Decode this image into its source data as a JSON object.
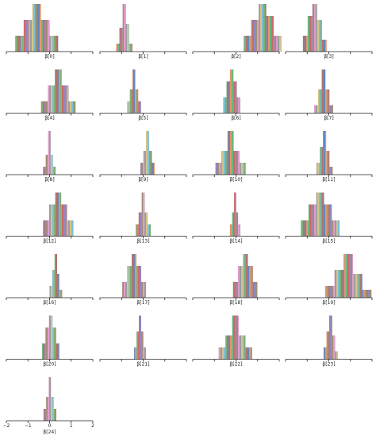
{
  "chart_data": [
    {
      "type": "histogram",
      "xlabel": "β[0]",
      "bins": [
        -1.6,
        -1.2,
        -0.8,
        -0.4,
        0,
        0.4
      ],
      "counts": [
        20,
        40,
        60,
        40,
        20
      ]
    },
    {
      "type": "histogram",
      "xlabel": "β[1]",
      "bins": [
        -1.25,
        -1.1,
        -0.95,
        -0.8,
        -0.65,
        -0.5
      ],
      "counts": [
        10,
        30,
        60,
        35,
        10
      ]
    },
    {
      "type": "histogram",
      "xlabel": "β[2]",
      "bins": [
        0.35,
        0.7,
        1.05,
        1.4,
        1.75,
        2.1
      ],
      "counts": [
        20,
        40,
        60,
        45,
        20
      ]
    },
    {
      "type": "histogram",
      "xlabel": "β[3]",
      "bins": [
        -1.2,
        -0.98,
        -0.76,
        -0.54,
        -0.32,
        -0.1
      ],
      "counts": [
        20,
        45,
        60,
        40,
        15
      ]
    },
    {
      "type": "histogram",
      "xlabel": "β[4]",
      "bins": [
        -0.4,
        -0.08,
        0.24,
        0.56,
        0.88,
        1.2
      ],
      "counts": [
        15,
        35,
        55,
        35,
        15
      ]
    },
    {
      "type": "histogram",
      "xlabel": "β[5]",
      "bins": [
        -0.75,
        -0.62,
        -0.49,
        -0.36,
        -0.23,
        -0.1
      ],
      "counts": [
        15,
        30,
        55,
        30,
        15
      ]
    },
    {
      "type": "histogram",
      "xlabel": "β[6]",
      "bins": [
        -0.6,
        -0.44,
        -0.28,
        -0.12,
        0.04,
        0.2
      ],
      "counts": [
        20,
        40,
        55,
        40,
        20
      ]
    },
    {
      "type": "histogram",
      "xlabel": "β[7]",
      "bins": [
        -0.68,
        -0.5,
        -0.33,
        -0.15,
        0.03,
        0.2
      ],
      "counts": [
        10,
        30,
        55,
        30,
        10
      ]
    },
    {
      "type": "histogram",
      "xlabel": "β[8]",
      "bins": [
        -0.3,
        -0.18,
        -0.07,
        0.05,
        0.16,
        0.28
      ],
      "counts": [
        10,
        25,
        55,
        25,
        10
      ]
    },
    {
      "type": "histogram",
      "xlabel": "β[9]",
      "bins": [
        -0.13,
        0,
        0.13,
        0.27,
        0.4,
        0.53
      ],
      "counts": [
        15,
        30,
        55,
        30,
        15
      ]
    },
    {
      "type": "histogram",
      "xlabel": "β[10]",
      "bins": [
        -0.95,
        -0.67,
        -0.39,
        -0.11,
        0.17,
        0.45
      ],
      "counts": [
        15,
        30,
        55,
        30,
        15
      ]
    },
    {
      "type": "histogram",
      "xlabel": "β[11]",
      "bins": [
        -0.57,
        -0.42,
        -0.27,
        -0.12,
        0.03,
        0.18
      ],
      "counts": [
        15,
        35,
        55,
        30,
        10
      ]
    },
    {
      "type": "histogram",
      "xlabel": "β[12]",
      "bins": [
        -0.3,
        -0.02,
        0.26,
        0.54,
        0.82,
        1.1
      ],
      "counts": [
        20,
        40,
        55,
        40,
        20
      ]
    },
    {
      "type": "histogram",
      "xlabel": "β[13]",
      "bins": [
        -0.35,
        -0.21,
        -0.07,
        0.07,
        0.21,
        0.35
      ],
      "counts": [
        15,
        30,
        55,
        30,
        15
      ]
    },
    {
      "type": "histogram",
      "xlabel": "β[14]",
      "bins": [
        -0.28,
        -0.18,
        -0.09,
        0.01,
        0.1,
        0.2
      ],
      "counts": [
        15,
        30,
        55,
        30,
        15
      ]
    },
    {
      "type": "histogram",
      "xlabel": "β[15]",
      "bins": [
        -1.3,
        -0.94,
        -0.58,
        -0.22,
        0.14,
        0.5
      ],
      "counts": [
        20,
        40,
        55,
        40,
        20
      ]
    },
    {
      "type": "histogram",
      "xlabel": "β[16]",
      "bins": [
        0,
        0.12,
        0.23,
        0.35,
        0.46,
        0.58
      ],
      "counts": [
        15,
        35,
        55,
        30,
        10
      ]
    },
    {
      "type": "histogram",
      "xlabel": "β[17]",
      "bins": [
        -0.97,
        -0.75,
        -0.53,
        -0.31,
        -0.09,
        0.13
      ],
      "counts": [
        20,
        40,
        55,
        40,
        20
      ]
    },
    {
      "type": "histogram",
      "xlabel": "β[18]",
      "bins": [
        -0.14,
        0.09,
        0.32,
        0.55,
        0.78,
        1.0
      ],
      "counts": [
        20,
        40,
        55,
        40,
        20
      ]
    },
    {
      "type": "histogram",
      "xlabel": "β[19]",
      "bins": [
        -0.17,
        0.26,
        0.69,
        1.12,
        1.55,
        1.98
      ],
      "counts": [
        15,
        35,
        55,
        30,
        10
      ]
    },
    {
      "type": "histogram",
      "xlabel": "β[20]",
      "bins": [
        -0.35,
        -0.19,
        -0.03,
        0.14,
        0.3,
        0.46
      ],
      "counts": [
        20,
        40,
        55,
        40,
        20
      ]
    },
    {
      "type": "histogram",
      "xlabel": "β[21]",
      "bins": [
        -0.42,
        -0.31,
        -0.2,
        -0.09,
        0.02,
        0.13
      ],
      "counts": [
        15,
        35,
        55,
        35,
        15
      ]
    },
    {
      "type": "histogram",
      "xlabel": "β[22]",
      "bins": [
        -0.8,
        -0.49,
        -0.18,
        0.13,
        0.44,
        0.75
      ],
      "counts": [
        15,
        30,
        55,
        30,
        15
      ]
    },
    {
      "type": "histogram",
      "xlabel": "β[23]",
      "bins": [
        -0.24,
        -0.11,
        0.02,
        0.16,
        0.29,
        0.42
      ],
      "counts": [
        15,
        35,
        55,
        30,
        10
      ]
    },
    {
      "type": "histogram",
      "xlabel": "β[24]",
      "bins": [
        -0.28,
        -0.16,
        -0.04,
        0.07,
        0.19,
        0.31
      ],
      "counts": [
        15,
        30,
        55,
        30,
        15
      ],
      "xlim": [
        -2,
        2
      ],
      "xticks": [
        {
          "value": -2,
          "label": "−2"
        },
        {
          "value": -1,
          "label": "−1"
        },
        0,
        1,
        2
      ]
    }
  ]
}
